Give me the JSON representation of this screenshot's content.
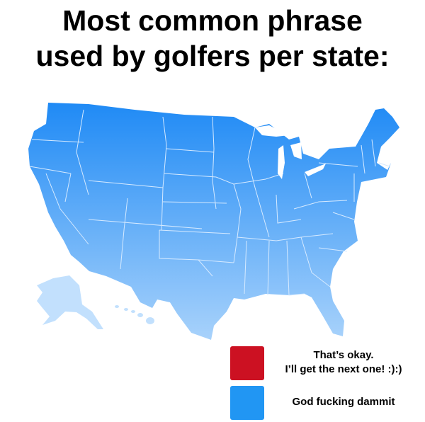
{
  "title": {
    "line1": "Most common phrase",
    "line2": "used by golfers per state:"
  },
  "colors": {
    "map_top": "#1f8af5",
    "map_bottom": "#a8d2fb",
    "border": "#d6eaff",
    "red": "#cc1122",
    "blue": "#2196f3"
  },
  "legend": {
    "items": [
      {
        "line1": "That’s okay.",
        "line2": "I’ll get the next one! :):)",
        "color": "#cc1122"
      },
      {
        "line1": "God fucking dammit",
        "line2": "",
        "color": "#2196f3"
      }
    ]
  }
}
